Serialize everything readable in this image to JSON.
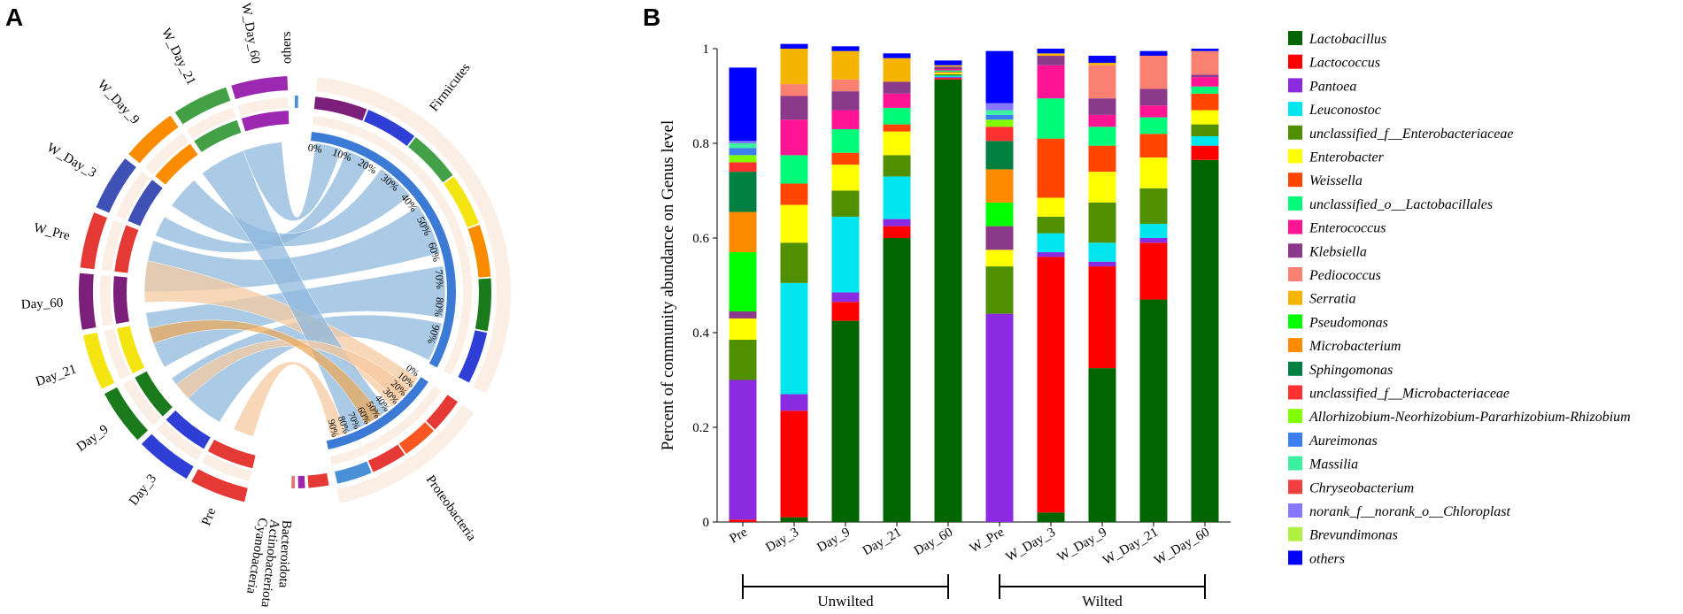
{
  "panels": {
    "a": "A",
    "b": "B"
  },
  "chord": {
    "phyla": [
      {
        "name": "Firmicutes",
        "color": "#7b1fa2"
      },
      {
        "name": "Proteobacteria",
        "color": "#1e88e5"
      },
      {
        "name": "Actinobacteriota",
        "color": "#e53935"
      },
      {
        "name": "Cyanobacteria",
        "color": "#9c27b0"
      },
      {
        "name": "Bacteroidota",
        "color": "#e57373"
      },
      {
        "name": "others",
        "color": "#4a90d9"
      }
    ],
    "samples": [
      "W_Day_60",
      "W_Day_21",
      "W_Day_9",
      "W_Day_3",
      "W_Pre",
      "Day_60",
      "Day_21",
      "Day_9",
      "Day_3",
      "Pre"
    ],
    "sample_colors": [
      "#9c27b0",
      "#43a047",
      "#fb8c00",
      "#3f51b5",
      "#e53935",
      "#7b1f7b",
      "#f4e411",
      "#1b7a1b",
      "#2f3fd6",
      "#e53935"
    ],
    "percent_ticks": [
      "0%",
      "10%",
      "20%",
      "30%",
      "40%",
      "50%",
      "60%",
      "70%",
      "80%",
      "90%"
    ]
  },
  "chart_data": {
    "type": "bar",
    "title": "",
    "ylabel": "Percent of community abundance on Genus level",
    "xlabel": "",
    "ylim": [
      0,
      1
    ],
    "yticks": [
      "0",
      "0.2",
      "0.4",
      "0.6",
      "0.8",
      "1"
    ],
    "categories": [
      "Pre",
      "Day_3",
      "Day_9",
      "Day_21",
      "Day_60",
      "W_Pre",
      "W_Day_3",
      "W_Day_9",
      "W_Day_21",
      "W_Day_60"
    ],
    "groups": [
      {
        "label": "Unwilted",
        "from": 0,
        "to": 4
      },
      {
        "label": "Wilted",
        "from": 5,
        "to": 9
      }
    ],
    "series": [
      {
        "name": "Lactobacillus",
        "color": "#006400",
        "values": [
          0.0,
          0.01,
          0.425,
          0.6,
          0.935,
          0.0,
          0.02,
          0.325,
          0.47,
          0.765
        ]
      },
      {
        "name": "Lactococcus",
        "color": "#ff0000",
        "values": [
          0.005,
          0.225,
          0.04,
          0.025,
          0.003,
          0.0,
          0.54,
          0.215,
          0.12,
          0.03
        ]
      },
      {
        "name": "Pantoea",
        "color": "#8a2be2",
        "values": [
          0.295,
          0.035,
          0.02,
          0.015,
          0.002,
          0.44,
          0.01,
          0.01,
          0.01,
          0.0
        ]
      },
      {
        "name": "Leuconostoc",
        "color": "#00e5ee",
        "values": [
          0.0,
          0.235,
          0.16,
          0.09,
          0.003,
          0.0,
          0.04,
          0.04,
          0.03,
          0.02
        ]
      },
      {
        "name": "unclassified_f__Enterobacteriaceae",
        "color": "#4f8f00",
        "values": [
          0.085,
          0.085,
          0.055,
          0.045,
          0.003,
          0.1,
          0.035,
          0.085,
          0.075,
          0.025
        ]
      },
      {
        "name": "Enterobacter",
        "color": "#ffff00",
        "values": [
          0.045,
          0.08,
          0.055,
          0.05,
          0.003,
          0.035,
          0.04,
          0.065,
          0.065,
          0.03
        ]
      },
      {
        "name": "Weissella",
        "color": "#ff4500",
        "values": [
          0.0,
          0.045,
          0.025,
          0.015,
          0.002,
          0.0,
          0.125,
          0.055,
          0.05,
          0.035
        ]
      },
      {
        "name": "unclassified_o__Lactobacillales",
        "color": "#00fa7a",
        "values": [
          0.0,
          0.06,
          0.05,
          0.035,
          0.003,
          0.0,
          0.085,
          0.04,
          0.035,
          0.015
        ]
      },
      {
        "name": "Enterococcus",
        "color": "#ff1493",
        "values": [
          0.0,
          0.075,
          0.04,
          0.03,
          0.003,
          0.0,
          0.07,
          0.025,
          0.025,
          0.02
        ]
      },
      {
        "name": "Klebsiella",
        "color": "#8b3a8b",
        "values": [
          0.015,
          0.05,
          0.04,
          0.025,
          0.005,
          0.05,
          0.02,
          0.035,
          0.035,
          0.005
        ]
      },
      {
        "name": "Pediococcus",
        "color": "#fa8072",
        "values": [
          0.0,
          0.025,
          0.025,
          0.0,
          0.0,
          0.0,
          0.0,
          0.07,
          0.07,
          0.05
        ]
      },
      {
        "name": "Serratia",
        "color": "#f4b400",
        "values": [
          0.0,
          0.075,
          0.06,
          0.05,
          0.003,
          0.0,
          0.005,
          0.005,
          0.0,
          0.0
        ]
      },
      {
        "name": "Pseudomonas",
        "color": "#00ff00",
        "values": [
          0.125,
          0.0,
          0.0,
          0.0,
          0.0,
          0.05,
          0.0,
          0.0,
          0.0,
          0.0
        ]
      },
      {
        "name": "Microbacterium",
        "color": "#ff8c00",
        "values": [
          0.085,
          0.0,
          0.0,
          0.0,
          0.0,
          0.07,
          0.0,
          0.0,
          0.0,
          0.0
        ]
      },
      {
        "name": "Sphingomonas",
        "color": "#008040",
        "values": [
          0.085,
          0.0,
          0.0,
          0.0,
          0.0,
          0.06,
          0.0,
          0.0,
          0.0,
          0.0
        ]
      },
      {
        "name": "unclassified_f__Microbacteriaceae",
        "color": "#ff3030",
        "values": [
          0.02,
          0.0,
          0.0,
          0.0,
          0.0,
          0.03,
          0.0,
          0.0,
          0.0,
          0.0
        ]
      },
      {
        "name": "Allorhizobium-Neorhizobium-Pararhizobium-Rhizobium",
        "color": "#80ff00",
        "values": [
          0.015,
          0.0,
          0.0,
          0.0,
          0.0,
          0.015,
          0.0,
          0.0,
          0.0,
          0.0
        ]
      },
      {
        "name": "Aureimonas",
        "color": "#3d7ef0",
        "values": [
          0.015,
          0.0,
          0.0,
          0.0,
          0.0,
          0.01,
          0.0,
          0.0,
          0.0,
          0.0
        ]
      },
      {
        "name": "Massilia",
        "color": "#3cf0a0",
        "values": [
          0.01,
          0.0,
          0.0,
          0.0,
          0.0,
          0.01,
          0.0,
          0.0,
          0.0,
          0.0
        ]
      },
      {
        "name": "Chryseobacterium",
        "color": "#f24040",
        "values": [
          0.0,
          0.0,
          0.0,
          0.0,
          0.0,
          0.0,
          0.0,
          0.0,
          0.0,
          0.0
        ]
      },
      {
        "name": "norank_f__norank_o__Chloroplast",
        "color": "#8878ff",
        "values": [
          0.005,
          0.0,
          0.0,
          0.0,
          0.0,
          0.015,
          0.0,
          0.0,
          0.0,
          0.0
        ]
      },
      {
        "name": "Brevundimonas",
        "color": "#b0f040",
        "values": [
          0.0,
          0.0,
          0.0,
          0.0,
          0.0,
          0.0,
          0.0,
          0.0,
          0.0,
          0.0
        ]
      },
      {
        "name": "others",
        "color": "#0000ff",
        "values": [
          0.155,
          0.01,
          0.01,
          0.01,
          0.01,
          0.11,
          0.01,
          0.015,
          0.01,
          0.005
        ]
      }
    ]
  }
}
